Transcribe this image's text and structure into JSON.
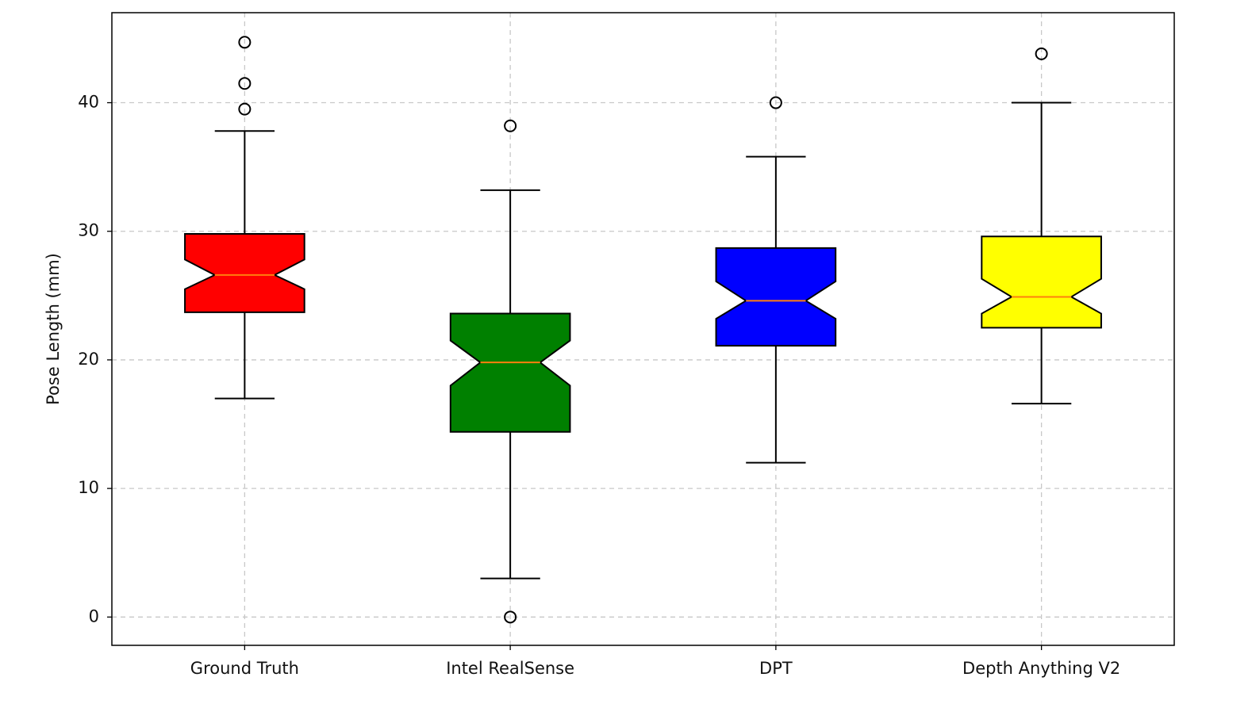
{
  "chart_data": {
    "type": "box",
    "y_label": "Pose Length (mm)",
    "categories": [
      "Ground Truth",
      "Intel RealSense",
      "DPT",
      "Depth Anything V2"
    ],
    "boxes": [
      {
        "color": "#ff0000",
        "whislo": 17.0,
        "q1": 23.7,
        "notch_lo": 25.5,
        "med": 26.6,
        "notch_hi": 27.8,
        "q3": 29.8,
        "whishi": 37.8,
        "fliers": [
          39.5,
          41.5,
          44.7
        ]
      },
      {
        "color": "#008000",
        "whislo": 3.0,
        "q1": 14.4,
        "notch_lo": 18.0,
        "med": 19.8,
        "notch_hi": 21.5,
        "q3": 23.6,
        "whishi": 33.2,
        "fliers": [
          0,
          38.2
        ]
      },
      {
        "color": "#0000ff",
        "whislo": 12.0,
        "q1": 21.1,
        "notch_lo": 23.2,
        "med": 24.6,
        "notch_hi": 26.1,
        "q3": 28.7,
        "whishi": 35.8,
        "fliers": [
          40.0
        ]
      },
      {
        "color": "#ffff00",
        "whislo": 16.6,
        "q1": 22.5,
        "notch_lo": 23.6,
        "med": 24.9,
        "notch_hi": 26.3,
        "q3": 29.6,
        "whishi": 40.0,
        "fliers": [
          43.8
        ]
      }
    ],
    "median_color": "#ff7f0e",
    "ylim": [
      -2.2,
      47
    ],
    "yticks": [
      0,
      10,
      20,
      30,
      40
    ],
    "grid": true
  }
}
